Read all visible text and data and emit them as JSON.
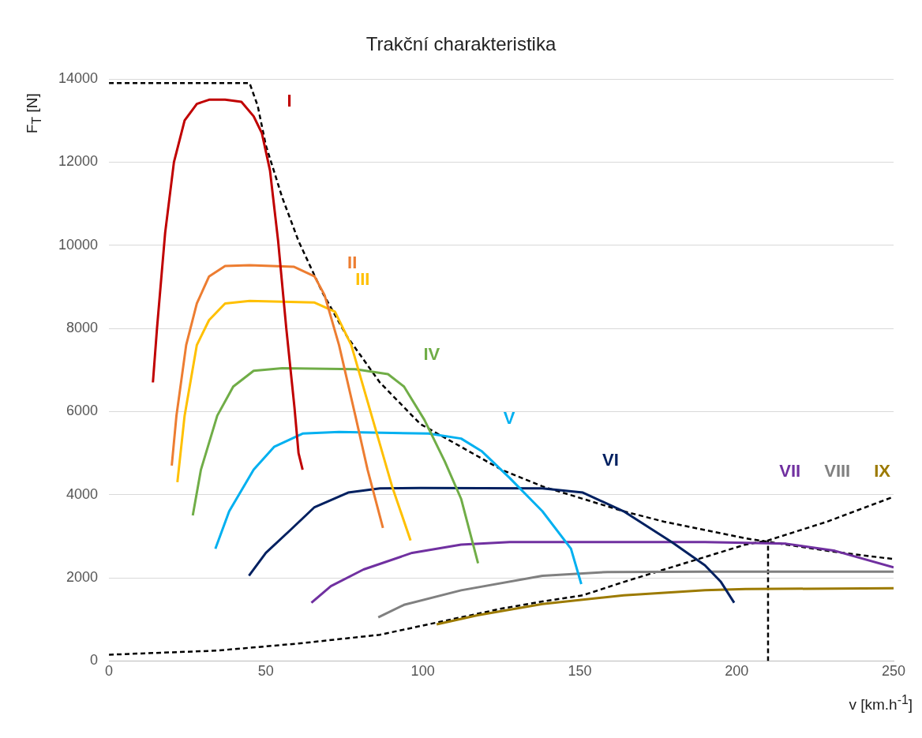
{
  "chart_data": {
    "type": "line",
    "title": "Trakční charakteristika",
    "xlabel": "v [km.h$^{-1}$]",
    "ylabel": "F$_{T}$ [N]",
    "xlim": [
      0,
      250
    ],
    "xticks": [
      0,
      50,
      100,
      150,
      200,
      250
    ],
    "ylim": [
      0,
      14000
    ],
    "yticks": [
      0,
      2000,
      4000,
      6000,
      8000,
      10000,
      12000,
      14000
    ],
    "grid": "y",
    "legend": false,
    "marker": "none",
    "line_style": "solid",
    "series": [
      {
        "name": "I",
        "color": "#c00000",
        "x": [
          14,
          15.3,
          17.9,
          20.7,
          24.1,
          28,
          31.9,
          37,
          42.2,
          46.1,
          48.7,
          51.3,
          53.9,
          56.5,
          59.1,
          60.4,
          61.7
        ],
        "values": [
          6700,
          8000,
          10300,
          12000,
          13000,
          13400,
          13500,
          13500,
          13450,
          13100,
          12700,
          11800,
          10100,
          8000,
          6100,
          5000,
          4600
        ]
      },
      {
        "name": "II",
        "color": "#ed7d31",
        "x": [
          20,
          21.5,
          24.6,
          28,
          31.9,
          37,
          44.8,
          59,
          65.5,
          68.7,
          73.3,
          78.5,
          82.4,
          87.3
        ],
        "values": [
          4700,
          5900,
          7600,
          8600,
          9250,
          9500,
          9520,
          9480,
          9250,
          8800,
          7600,
          5900,
          4600,
          3200
        ]
      },
      {
        "name": "III",
        "color": "#ffc000",
        "x": [
          21.8,
          24.1,
          28,
          31.9,
          37,
          44.8,
          65.5,
          72,
          77.2,
          83.7,
          90.2,
          96.1
        ],
        "values": [
          4300,
          5900,
          7600,
          8200,
          8600,
          8660,
          8620,
          8400,
          7600,
          5900,
          4200,
          2900
        ]
      },
      {
        "name": "IV",
        "color": "#70ad47",
        "x": [
          26.7,
          29.3,
          34.5,
          39.6,
          46.1,
          55.2,
          78.5,
          88.9,
          94,
          100.5,
          107,
          112.2,
          117.6
        ],
        "values": [
          3500,
          4600,
          5900,
          6600,
          6980,
          7040,
          7020,
          6900,
          6600,
          5800,
          4800,
          3900,
          2350
        ]
      },
      {
        "name": "V",
        "color": "#00b0f0",
        "x": [
          33.9,
          38.3,
          46.1,
          52.6,
          61.7,
          73.3,
          101.8,
          112.2,
          118.7,
          127.7,
          138.1,
          147.2,
          150.5
        ],
        "values": [
          2700,
          3600,
          4600,
          5150,
          5470,
          5510,
          5470,
          5350,
          5050,
          4400,
          3600,
          2700,
          1850
        ]
      },
      {
        "name": "VI",
        "color": "#002060",
        "x": [
          44.6,
          50,
          57.8,
          65.5,
          76.2,
          86.3,
          99.2,
          138.1,
          151,
          164,
          179.5,
          189.9,
          195,
          199.2
        ],
        "values": [
          2050,
          2600,
          3150,
          3700,
          4050,
          4150,
          4160,
          4150,
          4050,
          3600,
          2850,
          2300,
          1900,
          1400
        ]
      },
      {
        "name": "VII",
        "color": "#7030a0",
        "x": [
          64.5,
          70.7,
          81.1,
          96.6,
          112.2,
          127.7,
          189.9,
          215.8,
          231.3,
          250
        ],
        "values": [
          1400,
          1800,
          2200,
          2600,
          2800,
          2860,
          2860,
          2820,
          2650,
          2250
        ]
      },
      {
        "name": "VIII",
        "color": "#808080",
        "x": [
          85.8,
          94,
          112.2,
          138.1,
          158.8,
          189.9,
          250
        ],
        "values": [
          1050,
          1350,
          1700,
          2050,
          2140,
          2150,
          2150
        ]
      },
      {
        "name": "IX",
        "color": "#9c7a00",
        "x": [
          104.4,
          117.4,
          138.1,
          164,
          189.9,
          202.8,
          250
        ],
        "values": [
          880,
          1100,
          1370,
          1580,
          1700,
          1730,
          1750
        ]
      },
      {
        "color": "#000000",
        "line_style": "dashed",
        "x": [
          0,
          44.8,
          47.4,
          50,
          55.2,
          60.4,
          68.1,
          75.9,
          86.3,
          99.2,
          112.2,
          125.1,
          138.1,
          151,
          164,
          176.9,
          189.9,
          202.8,
          215.8,
          228.8,
          250
        ],
        "values": [
          13900,
          13900,
          13350,
          12400,
          11150,
          10100,
          8850,
          7800,
          6700,
          5700,
          5150,
          4600,
          4200,
          3900,
          3600,
          3350,
          3150,
          2950,
          2800,
          2650,
          2450
        ]
      },
      {
        "color": "#000000",
        "line_style": "dashed",
        "x": [
          0,
          34.5,
          60.4,
          86.3,
          99.2,
          112.2,
          125.1,
          138.1,
          151,
          164,
          176.9,
          189.9,
          202.8,
          210,
          228.8,
          250
        ],
        "values": [
          150,
          250,
          420,
          630,
          840,
          1050,
          1260,
          1430,
          1580,
          1900,
          2200,
          2500,
          2800,
          2900,
          3350,
          3950
        ]
      },
      {
        "color": "#000000",
        "line_style": "dashed",
        "x": [
          210,
          210
        ],
        "values": [
          0,
          2900
        ]
      }
    ]
  }
}
